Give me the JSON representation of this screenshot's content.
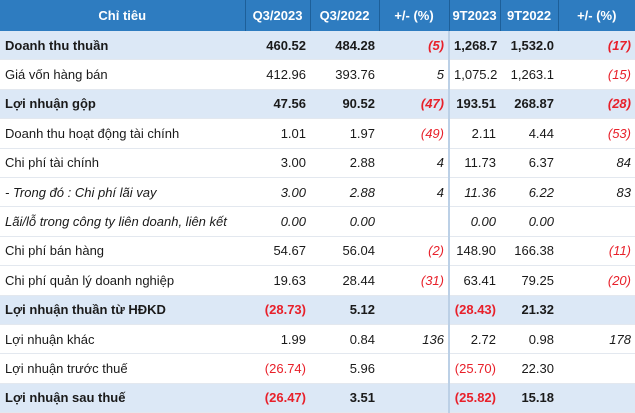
{
  "table": {
    "headers": [
      "Chỉ tiêu",
      "Q3/2023",
      "Q3/2022",
      "+/- (%)",
      "9T2023",
      "9T2022",
      "+/- (%)"
    ],
    "rows": [
      {
        "label": "Doanh thu thuần",
        "q3_2023": "460.52",
        "q3_2022": "484.28",
        "q_change": "(5)",
        "t9_2023": "1,268.7",
        "t9_2022": "1,532.0",
        "t_change": "(17)",
        "highlight": true,
        "italic": false
      },
      {
        "label": "Giá vốn hàng bán",
        "q3_2023": "412.96",
        "q3_2022": "393.76",
        "q_change": "5",
        "t9_2023": "1,075.2",
        "t9_2022": "1,263.1",
        "t_change": "(15)",
        "highlight": false,
        "italic": false
      },
      {
        "label": "Lợi nhuận gộp",
        "q3_2023": "47.56",
        "q3_2022": "90.52",
        "q_change": "(47)",
        "t9_2023": "193.51",
        "t9_2022": "268.87",
        "t_change": "(28)",
        "highlight": true,
        "italic": false
      },
      {
        "label": "Doanh thu hoạt động tài chính",
        "q3_2023": "1.01",
        "q3_2022": "1.97",
        "q_change": "(49)",
        "t9_2023": "2.11",
        "t9_2022": "4.44",
        "t_change": "(53)",
        "highlight": false,
        "italic": false
      },
      {
        "label": "Chi phí tài chính",
        "q3_2023": "3.00",
        "q3_2022": "2.88",
        "q_change": "4",
        "t9_2023": "11.73",
        "t9_2022": "6.37",
        "t_change": "84",
        "highlight": false,
        "italic": false
      },
      {
        "label": "- Trong đó : Chi phí lãi vay",
        "q3_2023": "3.00",
        "q3_2022": "2.88",
        "q_change": "4",
        "t9_2023": "11.36",
        "t9_2022": "6.22",
        "t_change": "83",
        "highlight": false,
        "italic": true
      },
      {
        "label": "Lãi/lỗ trong công ty liên doanh, liên kết",
        "q3_2023": "0.00",
        "q3_2022": "0.00",
        "q_change": "",
        "t9_2023": "0.00",
        "t9_2022": "0.00",
        "t_change": "",
        "highlight": false,
        "italic": true
      },
      {
        "label": "Chi phí bán hàng",
        "q3_2023": "54.67",
        "q3_2022": "56.04",
        "q_change": "(2)",
        "t9_2023": "148.90",
        "t9_2022": "166.38",
        "t_change": "(11)",
        "highlight": false,
        "italic": false
      },
      {
        "label": "Chi phí quản lý doanh nghiệp",
        "q3_2023": "19.63",
        "q3_2022": "28.44",
        "q_change": "(31)",
        "t9_2023": "63.41",
        "t9_2022": "79.25",
        "t_change": "(20)",
        "highlight": false,
        "italic": false
      },
      {
        "label": "Lợi nhuận thuần từ HĐKD",
        "q3_2023": "(28.73)",
        "q3_2022": "5.12",
        "q_change": "",
        "t9_2023": "(28.43)",
        "t9_2022": "21.32",
        "t_change": "",
        "highlight": true,
        "italic": false
      },
      {
        "label": "Lợi nhuận khác",
        "q3_2023": "1.99",
        "q3_2022": "0.84",
        "q_change": "136",
        "t9_2023": "2.72",
        "t9_2022": "0.98",
        "t_change": "178",
        "highlight": false,
        "italic": false
      },
      {
        "label": "Lợi nhuận trước thuế",
        "q3_2023": "(26.74)",
        "q3_2022": "5.96",
        "q_change": "",
        "t9_2023": "(25.70)",
        "t9_2022": "22.30",
        "t_change": "",
        "highlight": false,
        "italic": false
      },
      {
        "label": "Lợi nhuận sau thuế",
        "q3_2023": "(26.47)",
        "q3_2022": "3.51",
        "q_change": "",
        "t9_2023": "(25.82)",
        "t9_2022": "15.18",
        "t_change": "",
        "highlight": true,
        "italic": false
      }
    ]
  },
  "colors": {
    "header_bg": "#2e7cc0",
    "highlight_bg": "#dce8f6",
    "negative": "#e8202a"
  }
}
